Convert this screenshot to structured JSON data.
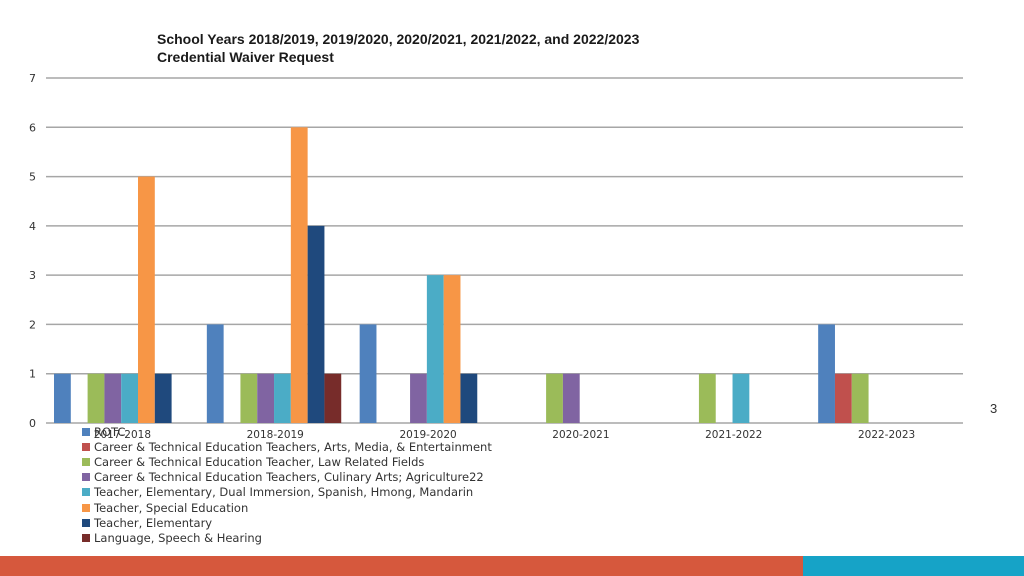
{
  "page_number": "3",
  "colors": {
    "footer_left": "#d6583d",
    "footer_right": "#16a3c7",
    "grid": "#a6a6a6"
  },
  "chart_data": {
    "type": "bar",
    "title_lines": [
      "School Years 2018/2019, 2019/2020, 2020/2021, 2021/2022, and 2022/2023",
      "Credential Waiver Request"
    ],
    "categories": [
      "2017-2018",
      "2018-2019",
      "2019-2020",
      "2020-2021",
      "2021-2022",
      "2022-2023"
    ],
    "ylim": [
      0,
      7
    ],
    "yticks": [
      0,
      1,
      2,
      3,
      4,
      5,
      6,
      7
    ],
    "grid": true,
    "legend_position": "bottom-left",
    "series": [
      {
        "name": "ROTC",
        "color": "#4f81bd",
        "values": [
          1,
          2,
          2,
          0,
          0,
          2
        ]
      },
      {
        "name": "Career & Technical Education Teachers, Arts, Media, & Entertainment",
        "color": "#c0504d",
        "values": [
          0,
          0,
          0,
          0,
          0,
          1
        ]
      },
      {
        "name": "Career & Technical Education Teacher,  Law Related Fields",
        "color": "#9bbb59",
        "values": [
          1,
          1,
          0,
          1,
          1,
          1
        ]
      },
      {
        "name": "Career & Technical Education Teachers, Culinary Arts; Agriculture22",
        "color": "#8064a2",
        "values": [
          1,
          1,
          1,
          1,
          0,
          0
        ]
      },
      {
        "name": "Teacher, Elementary, Dual Immersion, Spanish, Hmong, Mandarin",
        "color": "#4bacc6",
        "values": [
          1,
          1,
          3,
          0,
          1,
          0
        ]
      },
      {
        "name": "Teacher, Special Education",
        "color": "#f79646",
        "values": [
          5,
          6,
          3,
          0,
          0,
          0
        ]
      },
      {
        "name": "Teacher, Elementary",
        "color": "#1f497d",
        "values": [
          1,
          4,
          1,
          0,
          0,
          0
        ]
      },
      {
        "name": "Language, Speech & Hearing",
        "color": "#772c2a",
        "values": [
          0,
          1,
          0,
          0,
          0,
          0
        ]
      }
    ]
  }
}
